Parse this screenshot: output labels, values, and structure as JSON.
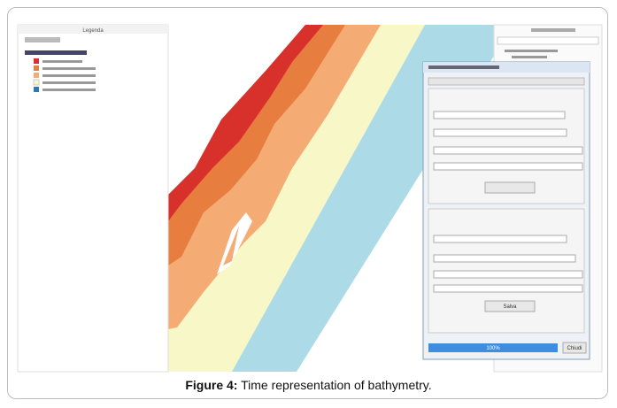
{
  "figure": {
    "legend_title": "Legenda",
    "save_button": "Salva",
    "close_button": "Chiudi",
    "progress": "100%",
    "caption": {
      "label": "Figure 4:",
      "text": "Time representation of bathymetry."
    }
  }
}
